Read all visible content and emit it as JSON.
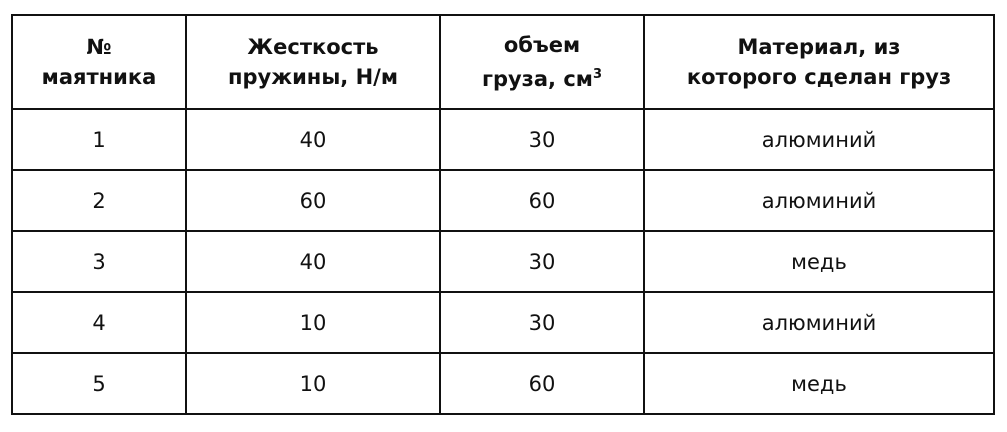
{
  "table": {
    "headers": [
      {
        "line1": "№",
        "line2": "маятника"
      },
      {
        "line1": "Жесткость",
        "line2": "пружины, Н/м"
      },
      {
        "line1": "объем",
        "line2": "груза, см",
        "sup": "3"
      },
      {
        "line1": "Материал, из",
        "line2": "которого сделан груз"
      }
    ],
    "rows": [
      [
        "1",
        "40",
        "30",
        "алюминий"
      ],
      [
        "2",
        "60",
        "60",
        "алюминий"
      ],
      [
        "3",
        "40",
        "30",
        "медь"
      ],
      [
        "4",
        "10",
        "30",
        "алюминий"
      ],
      [
        "5",
        "10",
        "60",
        "медь"
      ]
    ]
  }
}
